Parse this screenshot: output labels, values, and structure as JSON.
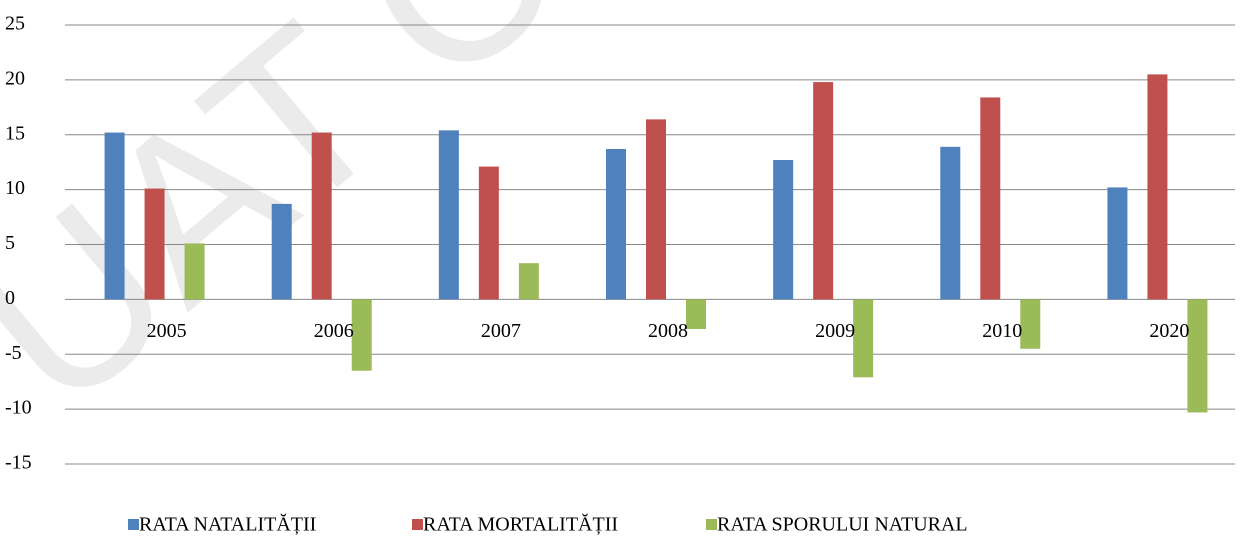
{
  "chart_data": {
    "type": "bar",
    "watermark": "UAT Com",
    "categories": [
      "2005",
      "2006",
      "2007",
      "2008",
      "2009",
      "2010",
      "2020"
    ],
    "series": [
      {
        "name": "RATA NATALITĂȚII",
        "color": "#4f81bd",
        "values": [
          15.2,
          8.7,
          15.4,
          13.7,
          12.7,
          13.9,
          10.2
        ]
      },
      {
        "name": "RATA MORTALITĂȚII",
        "color": "#c0504d",
        "values": [
          10.1,
          15.2,
          12.1,
          16.4,
          19.8,
          18.4,
          20.5
        ]
      },
      {
        "name": "RATA SPORULUI NATURAL",
        "color": "#9bbb59",
        "values": [
          5.1,
          -6.5,
          3.3,
          -2.7,
          -7.1,
          -4.5,
          -10.3
        ]
      }
    ],
    "ylim": [
      -15,
      25
    ],
    "yticks": [
      -15,
      -10,
      -5,
      0,
      5,
      10,
      15,
      20,
      25
    ],
    "grid": true,
    "legend": "bottom"
  }
}
